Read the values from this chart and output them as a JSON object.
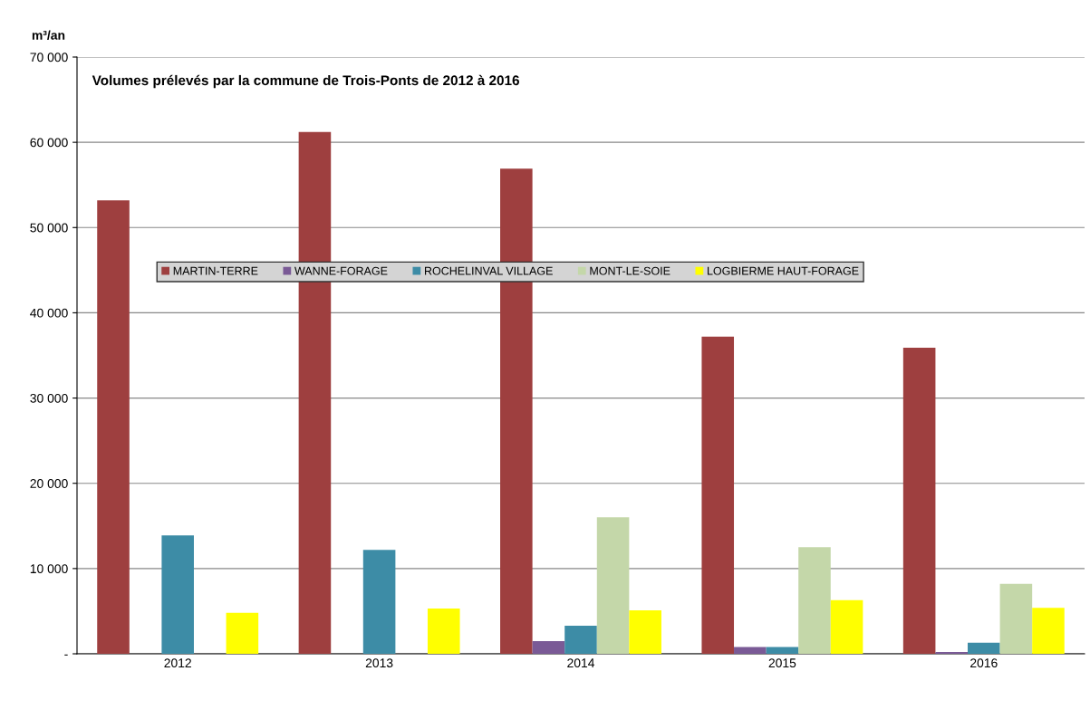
{
  "chart_data": {
    "type": "bar",
    "title": "Volumes prélevés par la commune de Trois-Ponts de 2012 à 2016",
    "ylabel": "m³/an",
    "categories": [
      "2012",
      "2013",
      "2014",
      "2015",
      "2016"
    ],
    "series": [
      {
        "name": "MARTIN-TERRE",
        "color": "#9e3f3f",
        "values": [
          53200,
          61200,
          56900,
          37200,
          35900
        ]
      },
      {
        "name": "WANNE-FORAGE",
        "color": "#7a5a96",
        "values": [
          null,
          null,
          1500,
          800,
          200
        ]
      },
      {
        "name": "ROCHELINVAL VILLAGE",
        "color": "#3d8ca6",
        "values": [
          13900,
          12200,
          3300,
          800,
          1300
        ]
      },
      {
        "name": "MONT-LE-SOIE",
        "color": "#c4d7a9",
        "values": [
          null,
          null,
          16000,
          12500,
          8200
        ]
      },
      {
        "name": "LOGBIERME HAUT-FORAGE",
        "color": "#ffff00",
        "values": [
          4800,
          5300,
          5100,
          6300,
          5400
        ]
      }
    ],
    "ylim": [
      0,
      70000
    ],
    "yticks": [
      {
        "value": 0,
        "label": "-"
      },
      {
        "value": 10000,
        "label": "10 000"
      },
      {
        "value": 20000,
        "label": "20 000"
      },
      {
        "value": 30000,
        "label": "30 000"
      },
      {
        "value": 40000,
        "label": "40 000"
      },
      {
        "value": 50000,
        "label": "50 000"
      },
      {
        "value": 60000,
        "label": "60 000"
      },
      {
        "value": 70000,
        "label": "70 000"
      }
    ],
    "grid": "y",
    "legend": "center"
  }
}
